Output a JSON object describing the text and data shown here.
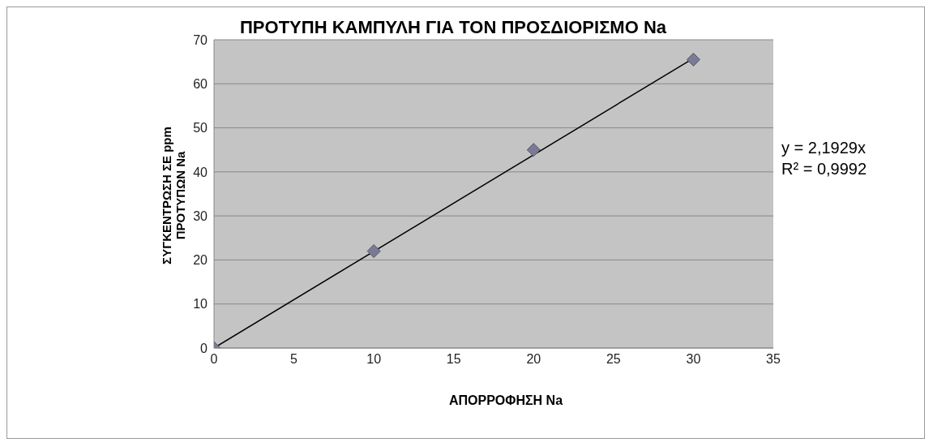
{
  "chart_data": {
    "type": "scatter",
    "title": "ΠΡΟΤΥΠΗ ΚΑΜΠΥΛΗ  ΓΙΑ ΤΟΝ ΠΡΟΣΔΙΟΡΙΣΜΟ Na",
    "xlabel": "ΑΠΟΡΡΟΦΗΣΗ Na",
    "ylabel": "ΣΥΓΚΕΝΤΡΩΣΗ ΣΕ ppm ΠΡΟΤΥΠΩΝ Na",
    "series": [
      {
        "color": "#7a7a96",
        "marker": "diamond",
        "x": [
          0,
          10,
          20,
          30
        ],
        "values": [
          0,
          22,
          45,
          65.5
        ]
      },
      {
        "type": "line",
        "color": "#000000",
        "marker": "none",
        "x": [
          0,
          30
        ],
        "values": [
          0,
          65.8
        ]
      }
    ],
    "xlim": [
      0,
      35
    ],
    "xticks": [
      0,
      5,
      10,
      15,
      20,
      25,
      30,
      35
    ],
    "ylim": [
      0,
      70
    ],
    "yticks": [
      0,
      10,
      20,
      30,
      40,
      50,
      60,
      70
    ],
    "grid": "y",
    "annotations": [
      "y = 2,1929x",
      "R² = 0,9992"
    ]
  }
}
